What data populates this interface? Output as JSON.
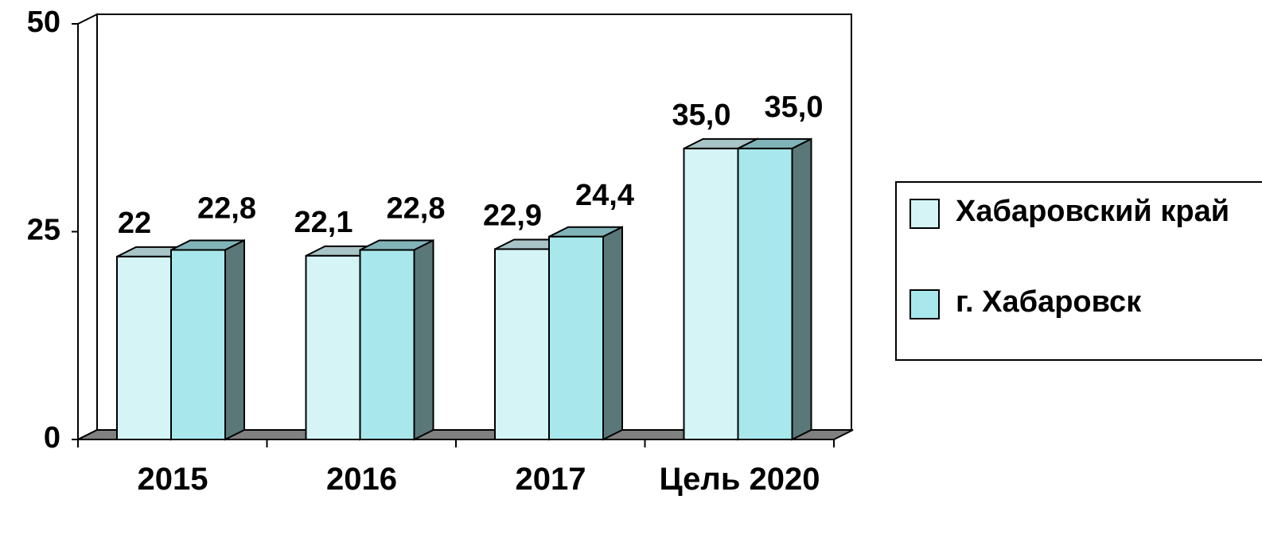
{
  "chart_data": {
    "type": "bar3d",
    "categories": [
      "2015",
      "2016",
      "2017",
      "Цель 2020"
    ],
    "series": [
      {
        "name": "Хабаровский край",
        "color": "#d4f4f6",
        "values": [
          22,
          22.1,
          22.9,
          35
        ],
        "value_labels": [
          "22",
          "22,1",
          "22,9",
          "35,0"
        ]
      },
      {
        "name": "г. Хабаровск",
        "color": "#a8e8ec",
        "values": [
          22.8,
          22.8,
          24.4,
          35
        ],
        "value_labels": [
          "22,8",
          "22,8",
          "24,4",
          "35,0"
        ]
      }
    ],
    "ylim": [
      0,
      50
    ],
    "yticks": [
      0,
      25,
      50
    ],
    "legend": "right"
  }
}
